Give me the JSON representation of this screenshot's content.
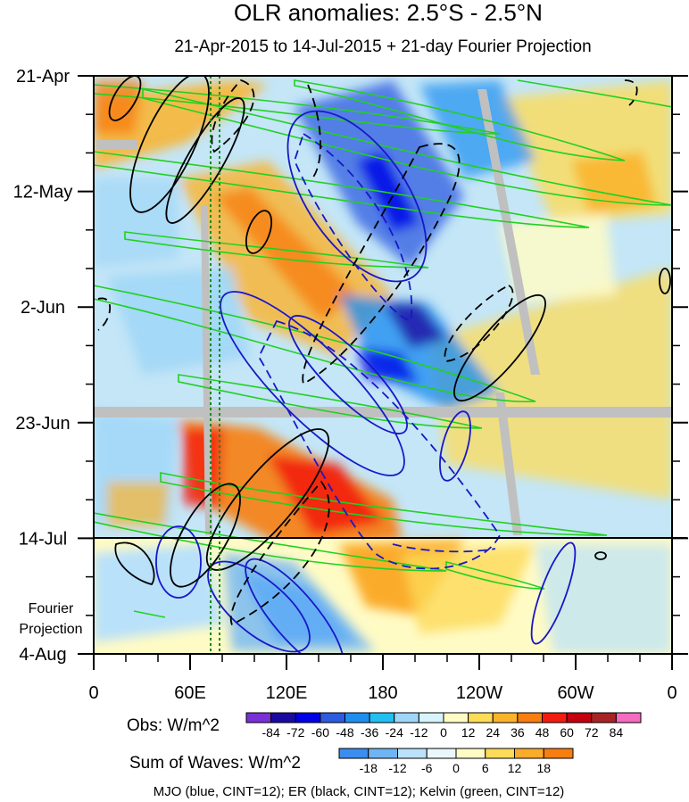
{
  "chart_data": {
    "type": "heatmap",
    "title": "OLR anomalies: 2.5°S - 2.5°N",
    "subtitle": "21-Apr-2015 to 14-Jul-2015 + 21-day Fourier Projection",
    "x_ticks": [
      "0",
      "60E",
      "120E",
      "180",
      "120W",
      "60W",
      "0"
    ],
    "x_range_deg_east": [
      0,
      360
    ],
    "y_ticks": [
      "21-Apr",
      "12-May",
      "2-Jun",
      "23-Jun",
      "14-Jul",
      "4-Aug"
    ],
    "y_range_days": [
      0,
      105
    ],
    "observation_end_label": "14-Jul",
    "fourier_label_line1": "Fourier",
    "fourier_label_line2": "Projection",
    "obs_colorbar": {
      "label": "Obs: W/m^2",
      "levels": [
        "-84",
        "-72",
        "-60",
        "-48",
        "-36",
        "-24",
        "-12",
        "0",
        "12",
        "24",
        "36",
        "48",
        "60",
        "72",
        "84"
      ],
      "colors": [
        "#7a2fd8",
        "#1b0aa0",
        "#0000e6",
        "#2c5ce0",
        "#1f8ef0",
        "#22c0f2",
        "#9fd6f7",
        "#d7f3fb",
        "#fffbc5",
        "#fddc58",
        "#fbb32a",
        "#f77e0f",
        "#f21d0f",
        "#c4000f",
        "#a82424",
        "#f56bc0"
      ]
    },
    "waves_colorbar": {
      "label": "Sum of Waves: W/m^2",
      "levels": [
        "-18",
        "-12",
        "-6",
        "0",
        "6",
        "12",
        "18"
      ],
      "colors": [
        "#3b8eef",
        "#6fb5f5",
        "#b9e1fa",
        "#eaf8fd",
        "#fffbc5",
        "#fdda57",
        "#fbab2a",
        "#f77e0f"
      ]
    },
    "footer": "MJO (blue, CINT=12); ER (black, CINT=12); Kelvin (green, CINT=12)",
    "contour_colors": {
      "mjo": "#1818c8",
      "er": "#000000",
      "kelvin": "#22d022",
      "missing": "#c0c0c0"
    }
  }
}
